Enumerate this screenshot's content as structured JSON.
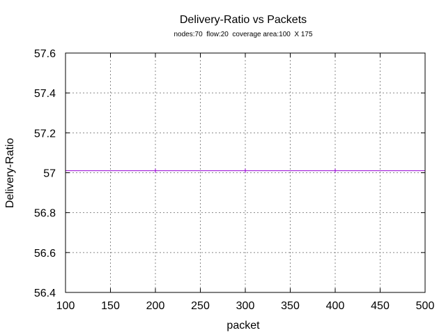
{
  "chart_data": {
    "type": "line",
    "title": "Delivery-Ratio vs Packets",
    "subtitle": "nodes:70  flow:20  coverage area:100  X 175",
    "xlabel": "packet",
    "ylabel": "Delivery-Ratio",
    "xlim": [
      100,
      500
    ],
    "ylim": [
      56.4,
      57.6
    ],
    "xticks": [
      "100",
      "150",
      "200",
      "250",
      "300",
      "350",
      "400",
      "450",
      "500"
    ],
    "yticks": [
      "56.4",
      "56.6",
      "56.8",
      "57",
      "57.2",
      "57.4",
      "57.6"
    ],
    "grid": true,
    "series": [
      {
        "color": "#9400d3",
        "x": [
          100,
          200,
          300,
          400,
          500
        ],
        "y": [
          57.01,
          57.01,
          57.01,
          57.01,
          57.01
        ]
      }
    ]
  }
}
